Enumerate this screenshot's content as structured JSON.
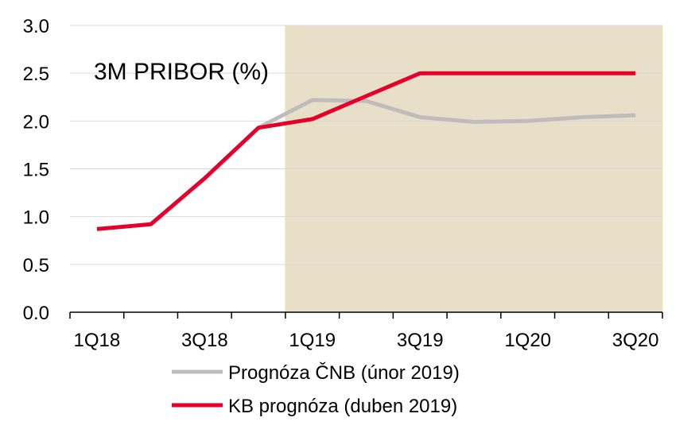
{
  "chart_data": {
    "type": "line",
    "title": "3M PRIBOR (%)",
    "xlabel": "",
    "ylabel": "",
    "ylim": [
      0.0,
      3.0
    ],
    "y_ticks": [
      "0.0",
      "0.5",
      "1.0",
      "1.5",
      "2.0",
      "2.5",
      "3.0"
    ],
    "x": [
      "1Q18",
      "2Q18",
      "3Q18",
      "4Q18",
      "1Q19",
      "2Q19",
      "3Q19",
      "4Q19",
      "1Q20",
      "2Q20",
      "3Q20"
    ],
    "x_tick_labels": [
      "1Q18",
      "3Q18",
      "1Q19",
      "3Q19",
      "1Q20",
      "3Q20"
    ],
    "forecast_region": {
      "from": "1Q19",
      "to": "3Q20",
      "color": "#e8dfc9"
    },
    "grid": "horizontal",
    "legend_position": "bottom",
    "series": [
      {
        "name": "Prognóza ČNB (únor 2019)",
        "color": "#c0bcbc",
        "values": [
          null,
          null,
          null,
          1.93,
          2.22,
          2.21,
          2.04,
          1.99,
          2.0,
          2.04,
          2.06
        ]
      },
      {
        "name": "KB prognóza (duben 2019)",
        "color": "#e4002b",
        "values": [
          0.87,
          0.92,
          1.4,
          1.93,
          2.02,
          2.26,
          2.5,
          2.5,
          2.5,
          2.5,
          2.5
        ]
      }
    ]
  }
}
